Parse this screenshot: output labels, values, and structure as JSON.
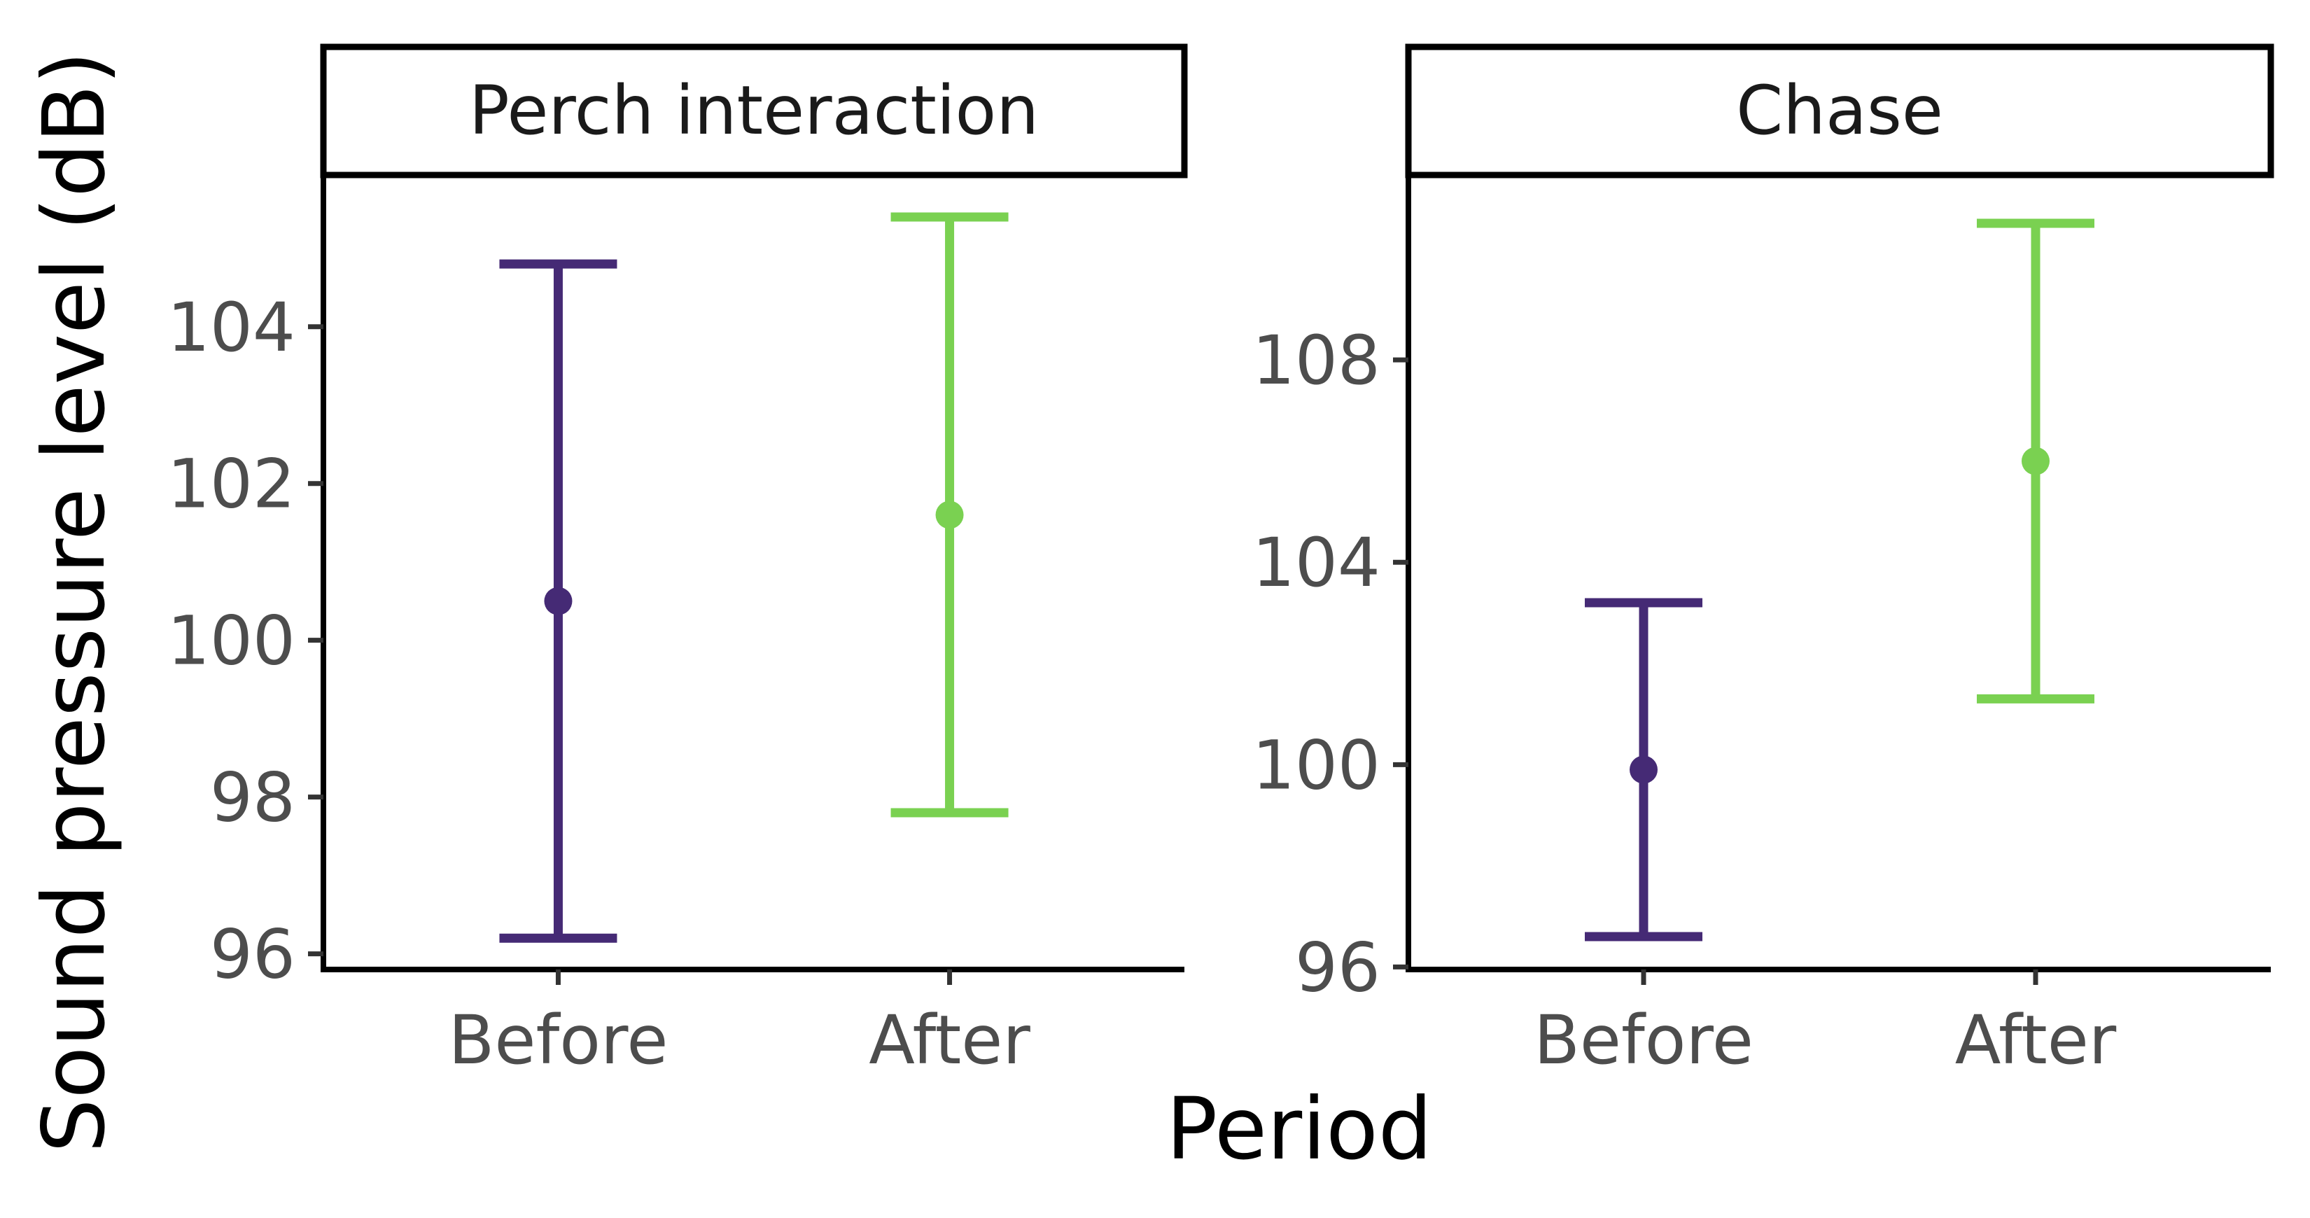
{
  "figure": {
    "ylabel": "Sound pressure level (dB)",
    "xlabel": "Period"
  },
  "chart_data": [
    {
      "type": "errorbar",
      "title": "Perch interaction",
      "xlabel": "Period",
      "ylabel": "Sound pressure level (dB)",
      "categories": [
        "Before",
        "After"
      ],
      "mean": [
        100.5,
        101.6
      ],
      "lower": [
        96.2,
        97.8
      ],
      "upper": [
        104.8,
        105.4
      ],
      "colors": [
        "#452a75",
        "#7ad151"
      ],
      "yticks": [
        96,
        98,
        100,
        102,
        104
      ],
      "ylim": [
        95.8,
        105.9
      ],
      "grid": false
    },
    {
      "type": "errorbar",
      "title": "Chase",
      "xlabel": "Period",
      "ylabel": "Sound pressure level (dB)",
      "categories": [
        "Before",
        "After"
      ],
      "mean": [
        99.9,
        106.0
      ],
      "lower": [
        96.6,
        101.3
      ],
      "upper": [
        103.2,
        110.7
      ],
      "colors": [
        "#452a75",
        "#7ad151"
      ],
      "yticks": [
        96,
        100,
        104,
        108
      ],
      "ylim": [
        95.95,
        111.6
      ],
      "grid": false
    }
  ]
}
